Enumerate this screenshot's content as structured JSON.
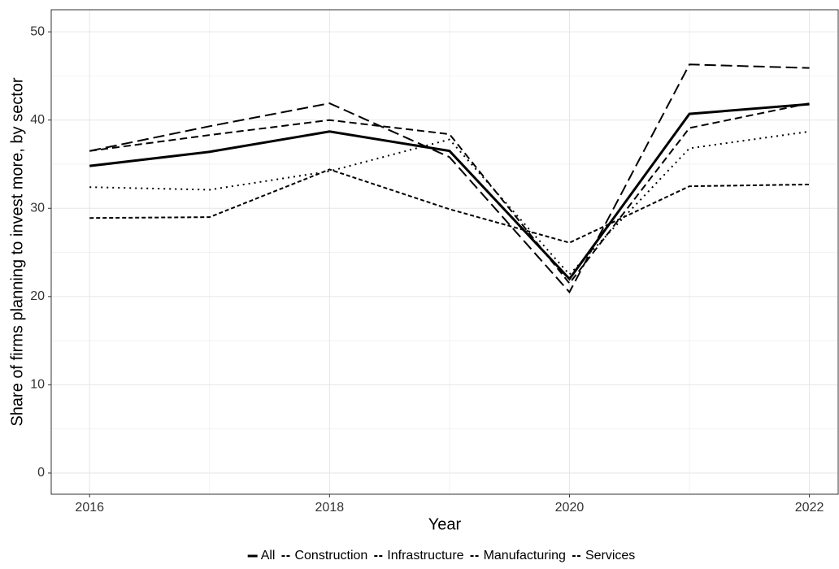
{
  "chart_data": {
    "type": "line",
    "x_label": "Year",
    "y_label": "Share of firms planning to invest more, by sector",
    "x": [
      2016,
      2017,
      2018,
      2019,
      2020,
      2021,
      2022
    ],
    "series": [
      {
        "name": "All",
        "color": "#000000",
        "width": 3,
        "dash": "none",
        "values": [
          34.8,
          36.4,
          38.7,
          36.5,
          22.0,
          40.7,
          41.8
        ]
      },
      {
        "name": "Construction",
        "color": "#000000",
        "width": 2,
        "dash": "5 3",
        "values": [
          28.9,
          29.0,
          34.4,
          29.9,
          26.1,
          32.5,
          32.7
        ]
      },
      {
        "name": "Infrastructure",
        "color": "#000000",
        "width": 2,
        "dash": "14 6",
        "values": [
          36.5,
          39.3,
          41.9,
          35.8,
          20.5,
          46.3,
          45.9
        ]
      },
      {
        "name": "Manufacturing",
        "color": "#000000",
        "width": 2,
        "dash": "9 5",
        "values": [
          36.5,
          38.3,
          40.0,
          38.4,
          21.5,
          39.1,
          41.9
        ]
      },
      {
        "name": "Services",
        "color": "#000000",
        "width": 2,
        "dash": "2 5",
        "values": [
          32.4,
          32.1,
          34.2,
          37.8,
          22.5,
          36.8,
          38.7
        ]
      }
    ],
    "xlim": [
      2015.68,
      2022.24
    ],
    "xticks": [
      2016,
      2018,
      2020,
      2022
    ],
    "xminor": [
      2017,
      2019,
      2021
    ],
    "ylim": [
      -2.4,
      52.5
    ],
    "yticks": [
      0,
      10,
      20,
      30,
      40,
      50
    ],
    "yminor": [
      5,
      15,
      25,
      35,
      45
    ],
    "grid": true,
    "legend": "bottom"
  }
}
